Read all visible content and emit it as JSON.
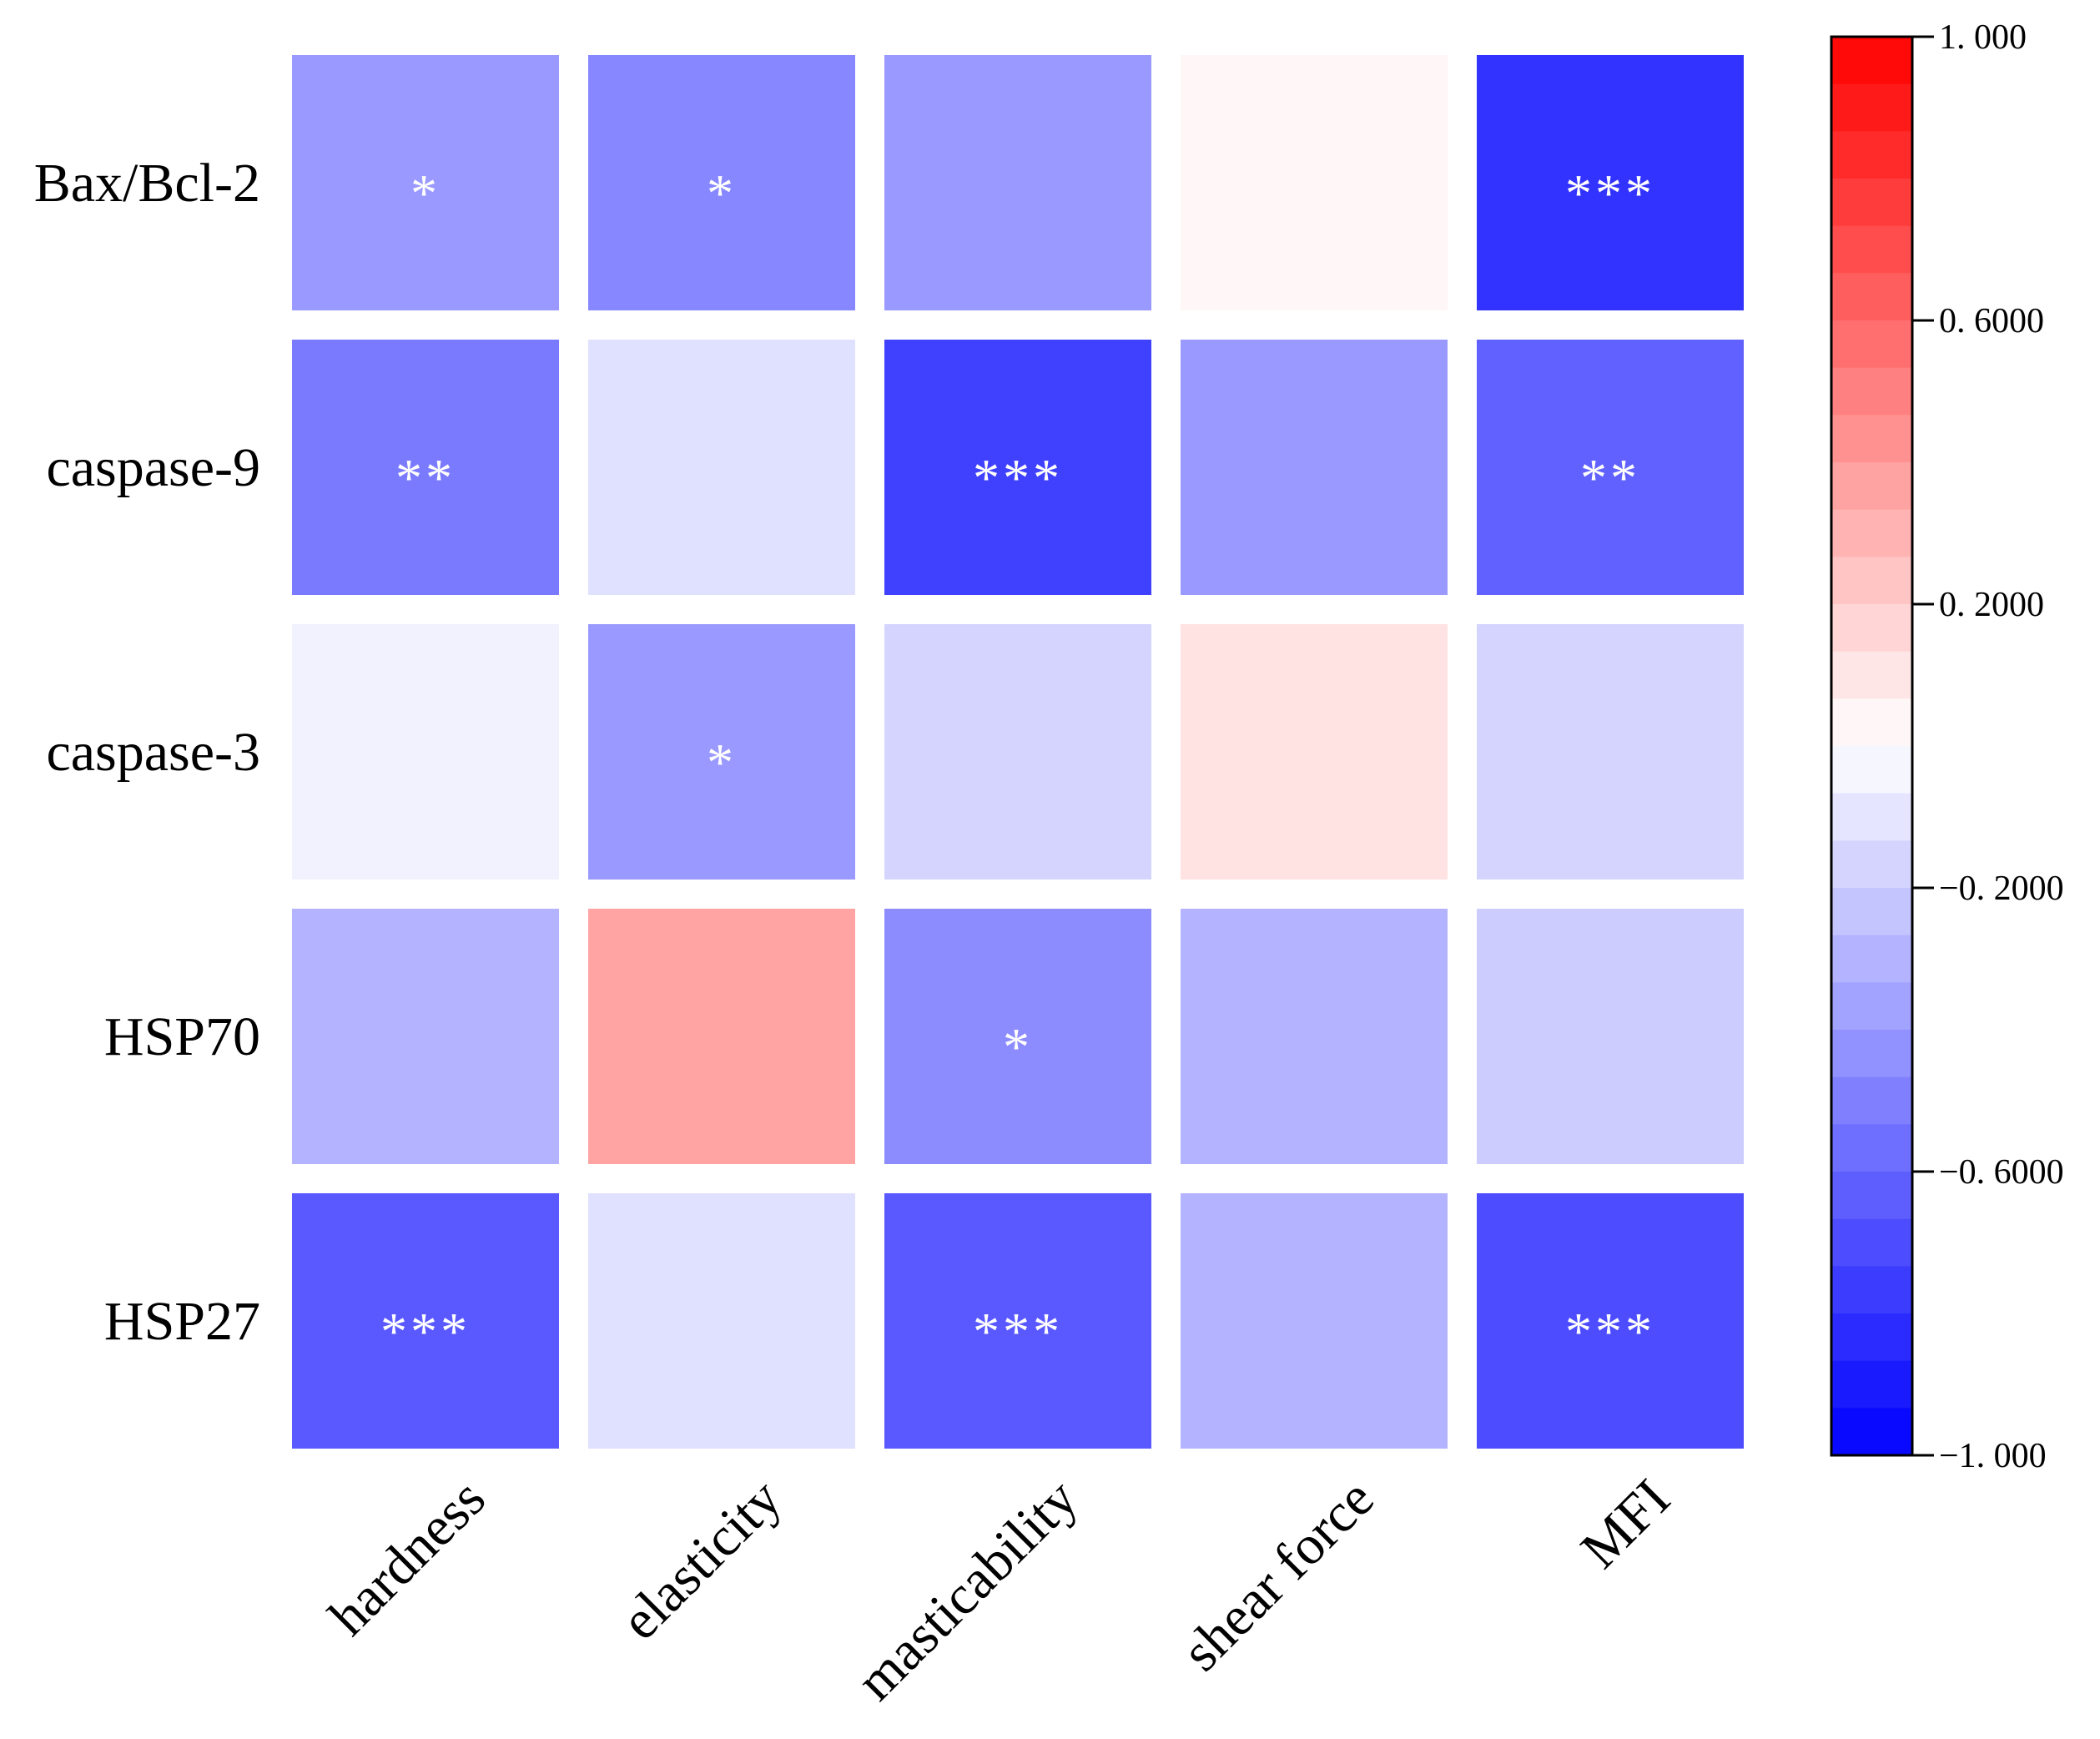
{
  "chart_data": {
    "type": "heatmap",
    "rows": [
      "Bax/Bcl-2",
      "caspase-9",
      "caspase-3",
      "HSP70",
      "HSP27"
    ],
    "columns": [
      "hardness",
      "elasticity",
      "masticability",
      "shear force",
      "MFI"
    ],
    "values": [
      [
        -0.4,
        -0.47,
        -0.4,
        0.03,
        -0.8
      ],
      [
        -0.52,
        -0.12,
        -0.75,
        -0.4,
        -0.62
      ],
      [
        -0.05,
        -0.4,
        -0.17,
        0.11,
        -0.17
      ],
      [
        -0.3,
        0.36,
        -0.45,
        -0.3,
        -0.2
      ],
      [
        -0.65,
        -0.12,
        -0.65,
        -0.3,
        -0.7
      ]
    ],
    "significance": [
      [
        "*",
        "*",
        "",
        "",
        "***"
      ],
      [
        "**",
        "",
        "***",
        "",
        "**"
      ],
      [
        "",
        "*",
        "",
        "",
        ""
      ],
      [
        "",
        "",
        "*",
        "",
        ""
      ],
      [
        "***",
        "",
        "***",
        "",
        "***"
      ]
    ],
    "colorbar": {
      "min": -1.0,
      "max": 1.0,
      "ticks": [
        1.0,
        0.6,
        0.2,
        -0.2,
        -0.6,
        -1.0
      ],
      "tick_labels": [
        "1. 000",
        "0. 6000",
        "0. 2000",
        "−0. 2000",
        "−0. 6000",
        "−1. 000"
      ],
      "steps": 30,
      "low_color": "#0000ff",
      "mid_color": "#ffffff",
      "high_color": "#ff0000"
    }
  }
}
